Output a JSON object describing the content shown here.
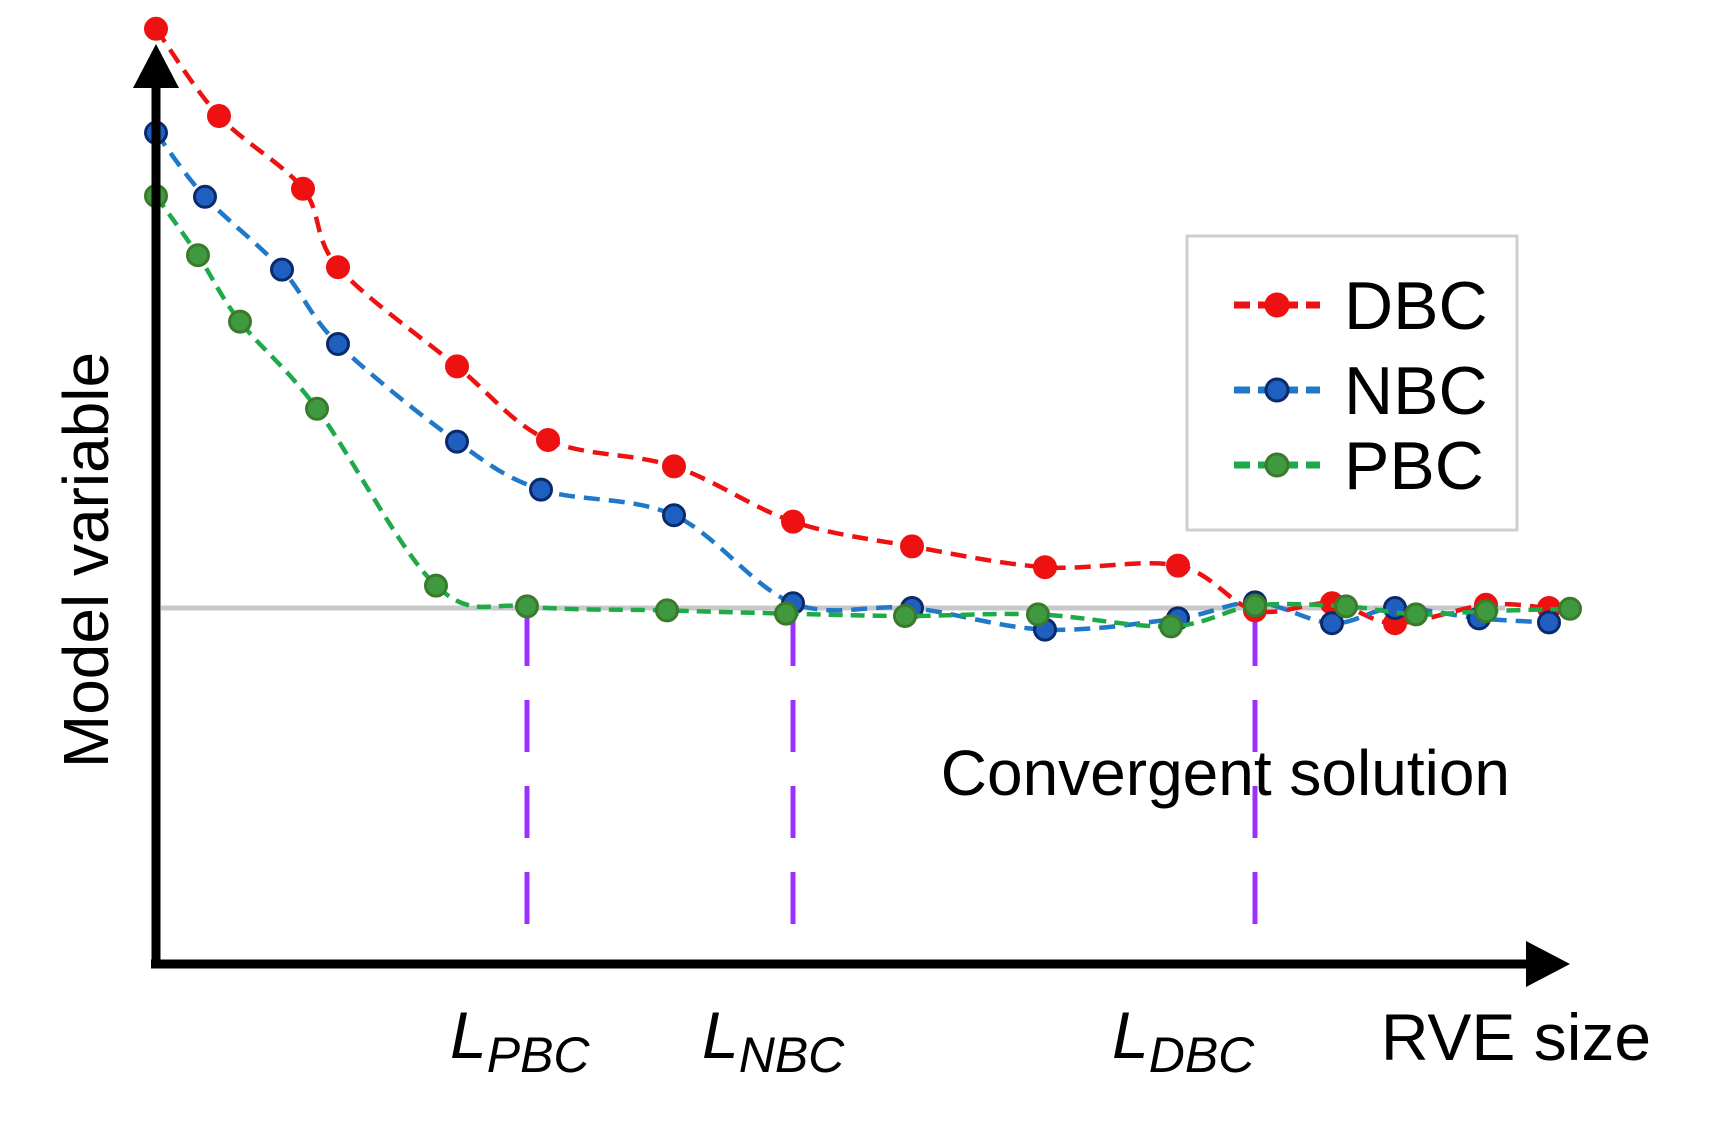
{
  "chart_data": {
    "type": "line",
    "xlabel": "RVE size",
    "ylabel": "Model variable",
    "axes_ticks_numeric": false,
    "ylim": [
      0,
      12
    ],
    "xlim": [
      0,
      20
    ],
    "reference_line": {
      "label": "Convergent solution",
      "y": 4.45,
      "color": "#c8c8c8"
    },
    "markers": [
      {
        "main": "L",
        "sub": "PBC",
        "x": 5.3
      },
      {
        "main": "L",
        "sub": "NBC",
        "x": 9.1
      },
      {
        "main": "L",
        "sub": "DBC",
        "x": 15.7
      }
    ],
    "marker_color": "#9b30ff",
    "legend": {
      "position": "top-right",
      "entries": [
        "DBC",
        "NBC",
        "PBC"
      ]
    },
    "series": [
      {
        "name": "DBC",
        "color": "#ee1111",
        "line_color": "#ee1111",
        "edge_color": "#ee1111",
        "points": [
          [
            0.0,
            11.69
          ],
          [
            0.9,
            10.6
          ],
          [
            2.1,
            9.69
          ],
          [
            2.6,
            8.71
          ],
          [
            4.3,
            7.47
          ],
          [
            5.6,
            6.55
          ],
          [
            7.4,
            6.22
          ],
          [
            9.1,
            5.53
          ],
          [
            10.8,
            5.22
          ],
          [
            12.7,
            4.96
          ],
          [
            14.6,
            4.98
          ],
          [
            15.7,
            4.42
          ],
          [
            16.8,
            4.51
          ],
          [
            17.7,
            4.26
          ],
          [
            19.0,
            4.49
          ],
          [
            19.9,
            4.45
          ]
        ]
      },
      {
        "name": "NBC",
        "color": "#1f5fbf",
        "line_color": "#1f78c8",
        "edge_color": "#0a2a6a",
        "points": [
          [
            0.0,
            10.39
          ],
          [
            0.7,
            9.59
          ],
          [
            1.8,
            8.68
          ],
          [
            2.6,
            7.75
          ],
          [
            4.3,
            6.53
          ],
          [
            5.5,
            5.93
          ],
          [
            7.4,
            5.61
          ],
          [
            9.1,
            4.51
          ],
          [
            10.8,
            4.45
          ],
          [
            12.7,
            4.18
          ],
          [
            14.6,
            4.32
          ],
          [
            15.7,
            4.52
          ],
          [
            16.8,
            4.26
          ],
          [
            17.7,
            4.45
          ],
          [
            18.9,
            4.32
          ],
          [
            19.9,
            4.27
          ]
        ]
      },
      {
        "name": "PBC",
        "color": "#3f9a3f",
        "line_color": "#1faa4a",
        "edge_color": "#3a7a2a",
        "points": [
          [
            0.0,
            9.6
          ],
          [
            0.6,
            8.86
          ],
          [
            1.2,
            8.03
          ],
          [
            2.3,
            6.94
          ],
          [
            4.0,
            4.73
          ],
          [
            5.3,
            4.47
          ],
          [
            7.3,
            4.42
          ],
          [
            9.0,
            4.38
          ],
          [
            10.7,
            4.35
          ],
          [
            12.6,
            4.37
          ],
          [
            14.5,
            4.22
          ],
          [
            15.7,
            4.48
          ],
          [
            17.0,
            4.47
          ],
          [
            18.0,
            4.37
          ],
          [
            19.0,
            4.41
          ],
          [
            20.2,
            4.44
          ]
        ]
      }
    ]
  }
}
